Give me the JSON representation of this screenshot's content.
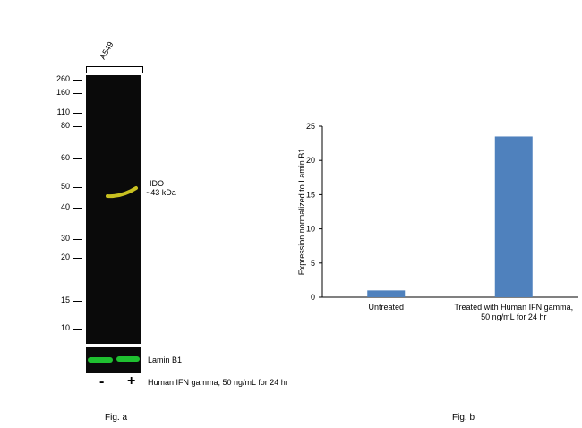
{
  "fig_a": {
    "cell_line": "A549",
    "markers": [
      "260",
      "160",
      "110",
      "80",
      "60",
      "50",
      "40",
      "30",
      "20",
      "15",
      "10"
    ],
    "band_label": "IDO",
    "band_size": "~43 kDa",
    "loading_control": "Lamin B1",
    "lane_minus": "-",
    "lane_plus": "+",
    "treatment": "Human IFN gamma, 50 ng/mL for 24 hr",
    "caption": "Fig. a",
    "band_color": "#c8c020",
    "lamin_color": "#1fc030"
  },
  "fig_b": {
    "caption": "Fig. b"
  },
  "chart_data": {
    "type": "bar",
    "categories": [
      "Untreated",
      "Treated with Human IFN gamma, 50 ng/mL for 24 hr"
    ],
    "category_lines": [
      [
        "Untreated"
      ],
      [
        "Treated with Human IFN gamma,",
        "50 ng/mL for 24 hr"
      ]
    ],
    "values": [
      1,
      23.5
    ],
    "ylabel": "Expression  normalized to Lamin B1",
    "ylim": [
      0,
      25
    ],
    "yticks": [
      0,
      5,
      10,
      15,
      20,
      25
    ],
    "bar_color": "#4f81bd",
    "grid": false
  }
}
